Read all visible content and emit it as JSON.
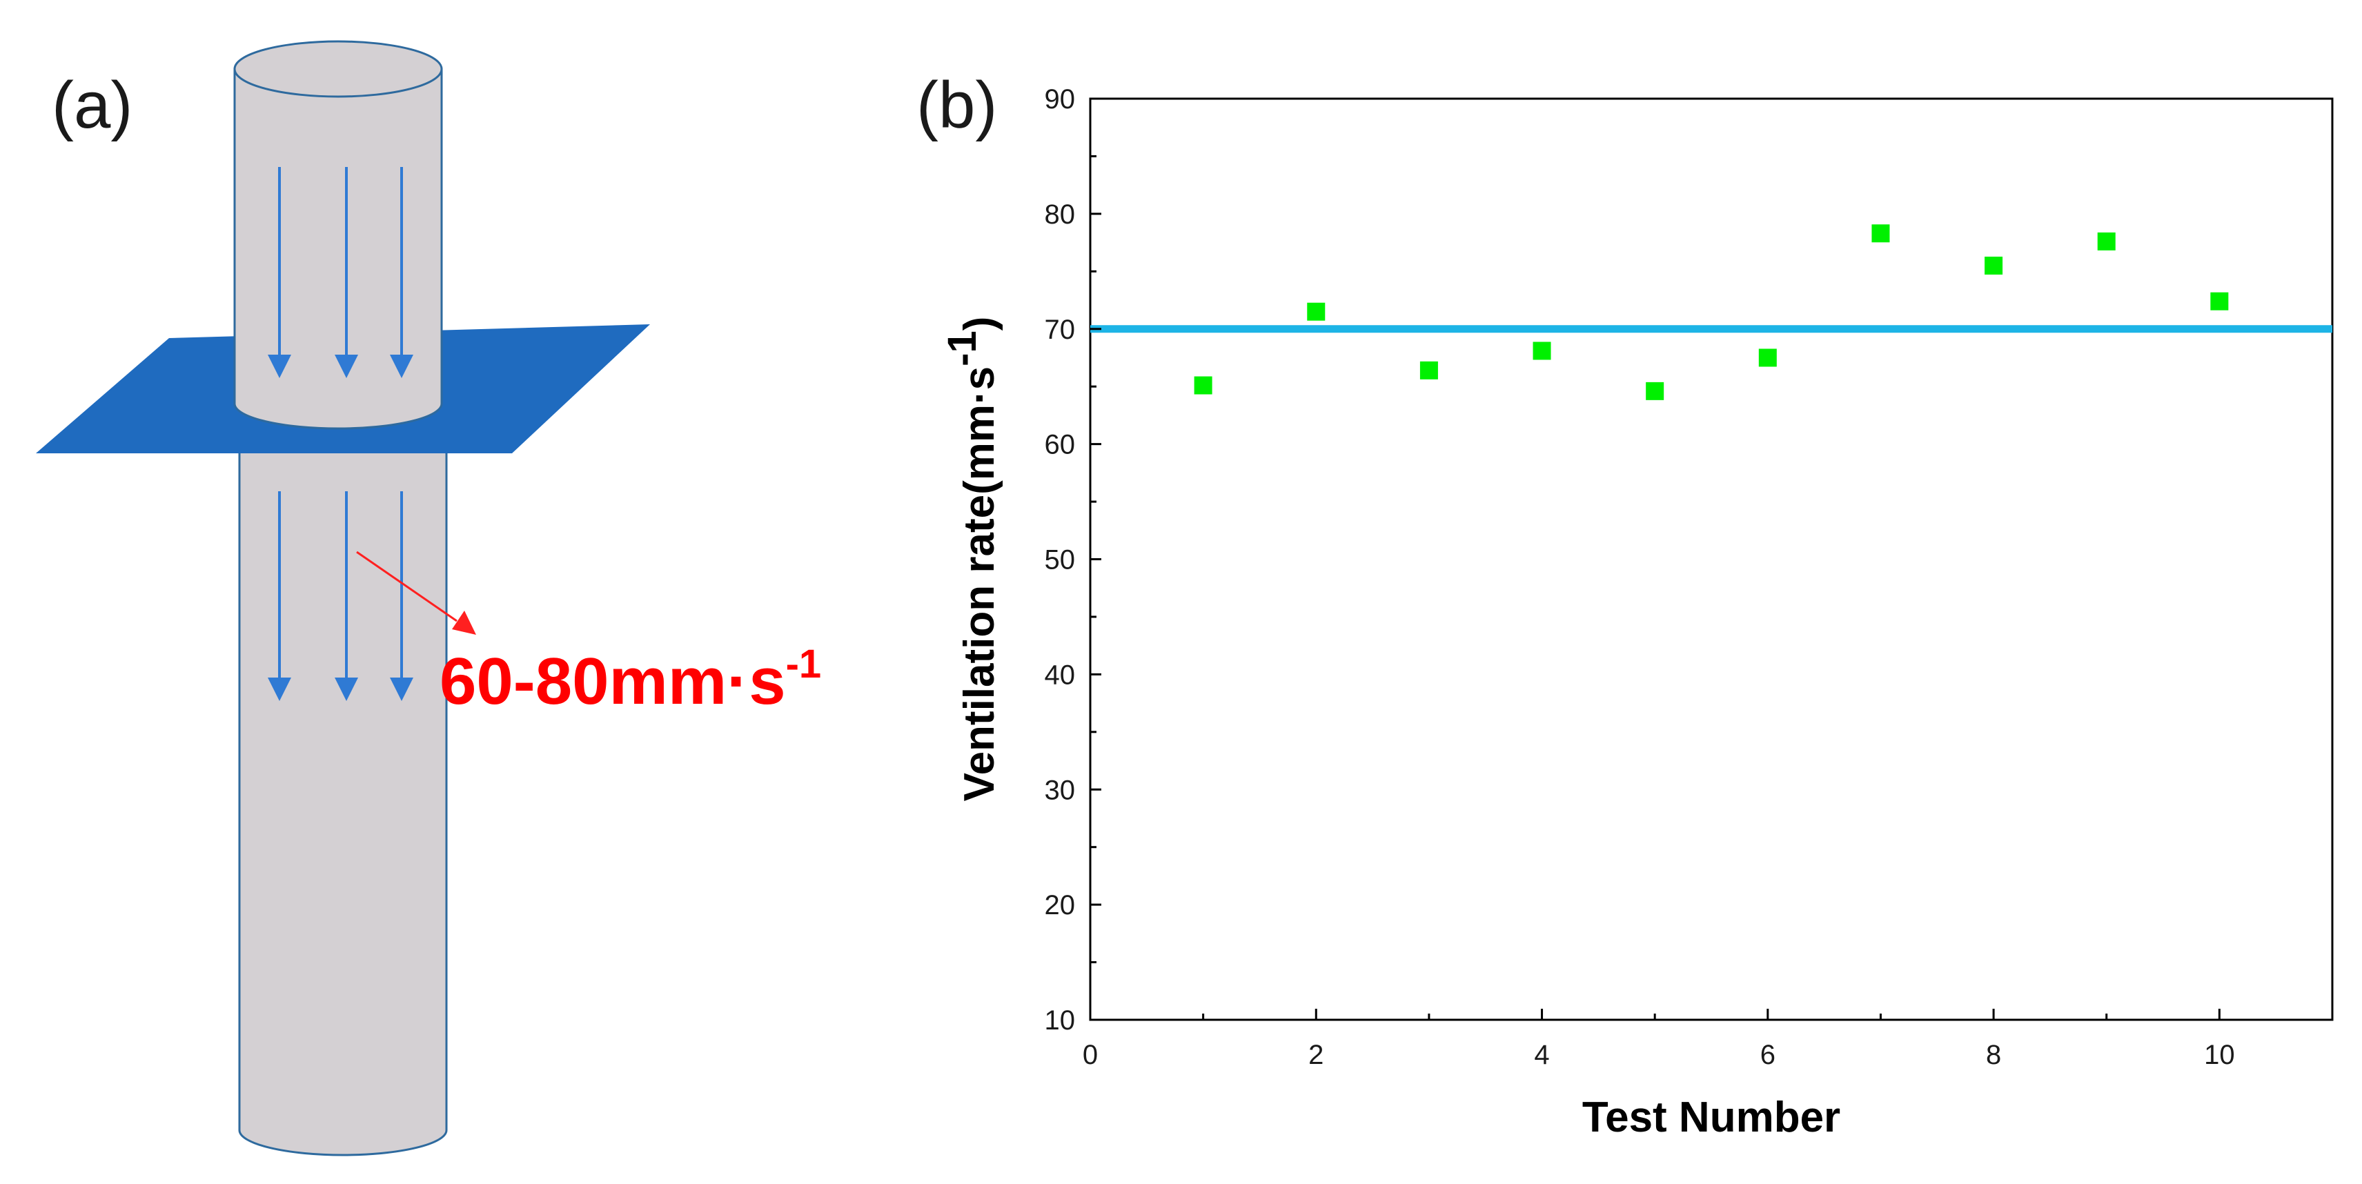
{
  "panel_a": {
    "label": "(a)",
    "flow_label": "60-80mm·s",
    "flow_label_sup": "-1",
    "colors": {
      "cylinder_fill": "#d4d0d3",
      "cylinder_stroke": "#2e6a9e",
      "plane_fill": "#1f6bbf",
      "flow_arrow": "#2f7ad4",
      "label_arrow": "#ff2020",
      "label_text": "#ff0000"
    }
  },
  "panel_b": {
    "label": "(b)"
  },
  "chart_data": {
    "type": "scatter",
    "x": [
      1,
      2,
      3,
      4,
      5,
      6,
      7,
      8,
      9,
      10
    ],
    "values": [
      65.1,
      71.5,
      66.4,
      68.1,
      64.6,
      67.5,
      78.3,
      75.5,
      77.6,
      72.4
    ],
    "xlabel": "Test Number",
    "ylabel": "Ventilation rate(mm·s",
    "ylabel_sup": "-1",
    "ylabel_close": ")",
    "xlim": [
      0,
      11
    ],
    "ylim": [
      10,
      90
    ],
    "xticks": [
      0,
      2,
      4,
      6,
      8,
      10
    ],
    "yticks": [
      10,
      20,
      30,
      40,
      50,
      60,
      70,
      80,
      90
    ],
    "reference_line_y": 70,
    "grid": false,
    "colors": {
      "marker": "#00f000",
      "reference_line": "#1db4e6",
      "axis": "#000000"
    }
  }
}
